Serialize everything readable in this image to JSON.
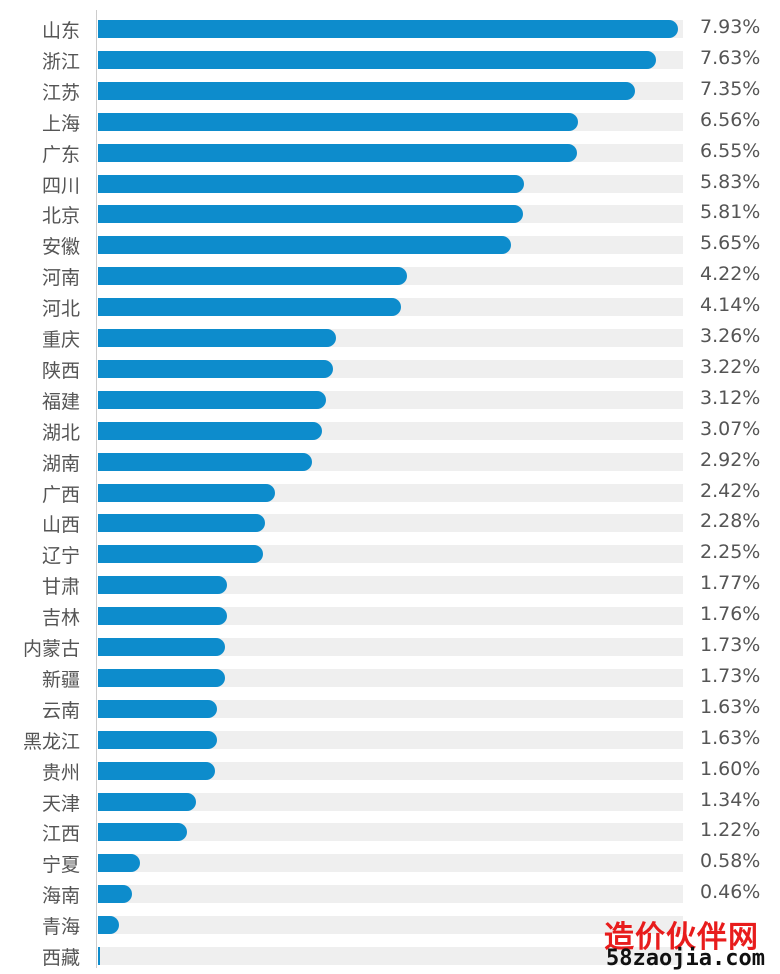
{
  "colors": {
    "bar": "#0d8ccc",
    "track": "#efefef",
    "text": "#555555",
    "watermark_red": "#e81c1c"
  },
  "chart_data": {
    "type": "bar",
    "orientation": "horizontal",
    "unit": "%",
    "xlim": [
      0,
      8.0
    ],
    "categories": [
      "山东",
      "浙江",
      "江苏",
      "上海",
      "广东",
      "四川",
      "北京",
      "安徽",
      "河南",
      "河北",
      "重庆",
      "陕西",
      "福建",
      "湖北",
      "湖南",
      "广西",
      "山西",
      "辽宁",
      "甘肃",
      "吉林",
      "内蒙古",
      "新疆",
      "云南",
      "黑龙江",
      "贵州",
      "天津",
      "江西",
      "宁夏",
      "海南",
      "青海",
      "西藏"
    ],
    "values": [
      7.93,
      7.63,
      7.35,
      6.56,
      6.55,
      5.83,
      5.81,
      5.65,
      4.22,
      4.14,
      3.26,
      3.22,
      3.12,
      3.07,
      2.92,
      2.42,
      2.28,
      2.25,
      1.77,
      1.76,
      1.73,
      1.73,
      1.63,
      1.63,
      1.6,
      1.34,
      1.22,
      0.58,
      0.46,
      0.29,
      0.03
    ],
    "labels": [
      "7.93%",
      "7.63%",
      "7.35%",
      "6.56%",
      "6.55%",
      "5.83%",
      "5.81%",
      "5.65%",
      "4.22%",
      "4.14%",
      "3.26%",
      "3.22%",
      "3.12%",
      "3.07%",
      "2.92%",
      "2.42%",
      "2.28%",
      "2.25%",
      "1.77%",
      "1.76%",
      "1.73%",
      "1.73%",
      "1.63%",
      "1.63%",
      "1.60%",
      "1.34%",
      "1.22%",
      "0.58%",
      "0.46%",
      "",
      ""
    ]
  },
  "watermark": {
    "name": "造价伙伴网",
    "url_digits": "58",
    "url_rest": "zaojia.com"
  }
}
